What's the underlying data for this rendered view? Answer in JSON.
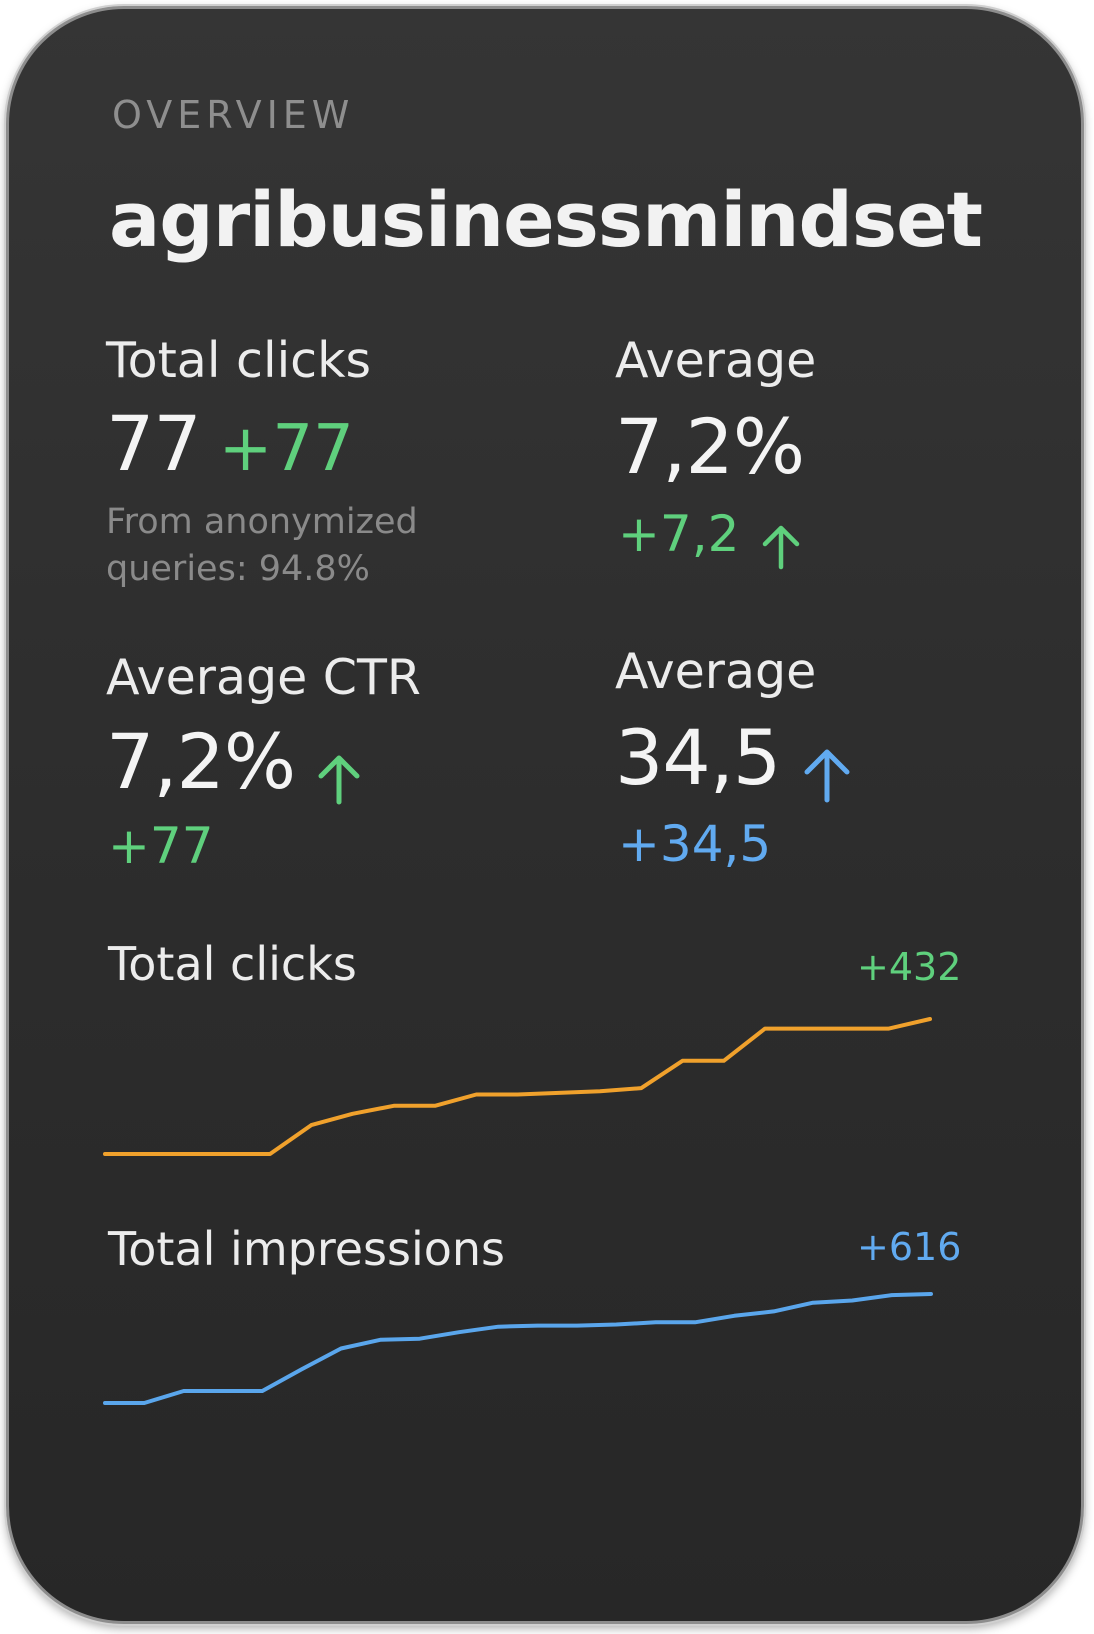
{
  "card": {
    "overline": "OVERVIEW",
    "site_name": "agribusinessmindset"
  },
  "metrics": {
    "total_clicks": {
      "label": "Total clicks",
      "value": "77",
      "delta": "+77",
      "note": "From anonymized queries: 94.8%"
    },
    "average_1": {
      "label": "Average",
      "value": "7,2%",
      "delta": "+7,2",
      "trend_icon": "arrow-up-icon",
      "color": "#5fd07d"
    },
    "average_ctr": {
      "label": "Average CTR",
      "value": "7,2%",
      "delta": "+77",
      "trend_icon": "arrow-up-icon",
      "color": "#5fd07d"
    },
    "average_2": {
      "label": "Average",
      "value": "34,5",
      "delta": "+34,5",
      "trend_icon": "arrow-up-icon",
      "color": "#61aaf0"
    }
  },
  "charts": {
    "clicks": {
      "label": "Total clicks",
      "delta": "+432",
      "line_color": "#f0a12c",
      "delta_color": "#5fd07d"
    },
    "impressions": {
      "label": "Total impressions",
      "delta": "+616",
      "line_color": "#5aa6ec",
      "delta_color": "#61aaf0"
    }
  },
  "chart_data": [
    {
      "type": "line",
      "title": "Total clicks",
      "x": [
        0,
        1,
        2,
        3,
        4,
        5,
        6,
        7,
        8,
        9,
        10,
        11,
        12,
        13,
        14,
        15,
        16,
        17,
        18,
        19,
        20
      ],
      "series": [
        {
          "values": [
            0,
            0,
            0,
            0,
            0,
            18,
            25,
            30,
            30,
            37,
            37,
            38,
            39,
            41,
            58,
            58,
            78,
            78,
            78,
            78,
            84
          ]
        }
      ]
    },
    {
      "type": "line",
      "title": "Total impressions",
      "x": [
        0,
        1,
        2,
        3,
        4,
        5,
        6,
        7,
        8,
        9,
        10,
        11,
        12,
        13,
        14,
        15,
        16,
        17,
        18,
        19,
        20,
        21
      ],
      "series": [
        {
          "values": [
            0,
            0,
            11,
            11,
            11,
            31,
            50,
            58,
            59,
            65,
            70,
            71,
            71,
            72,
            74,
            74,
            80,
            84,
            92,
            94,
            99,
            100
          ]
        }
      ]
    }
  ]
}
